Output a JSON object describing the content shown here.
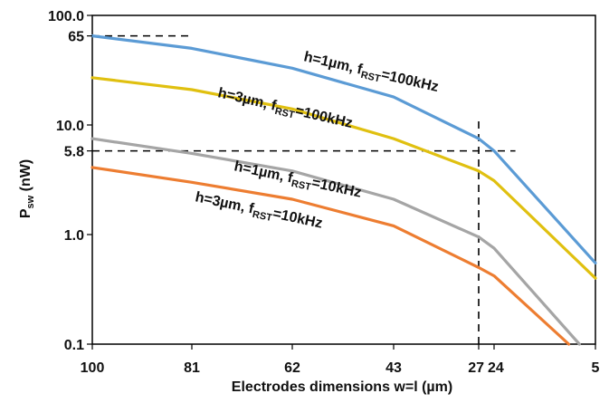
{
  "chart_data": {
    "type": "line",
    "title": "",
    "xlabel": "Electrodes dimensions w=l (µm)",
    "ylabel": {
      "base": "P",
      "sub": "sw",
      "rest": " (nW)"
    },
    "y_scale": "log",
    "ylim": [
      0.1,
      100
    ],
    "x_reversed": true,
    "xlim": [
      100,
      5
    ],
    "x_ticks": [
      100,
      81,
      62,
      43,
      27,
      24,
      5
    ],
    "x_tick_labels": [
      "100",
      "81",
      "62",
      "43",
      "27",
      "24",
      "5"
    ],
    "y_ticks": [
      0.1,
      1.0,
      5.8,
      10.0,
      65,
      100.0
    ],
    "y_tick_labels": [
      "0.1",
      "1.0",
      "5.8",
      "10.0",
      "65",
      "100.0"
    ],
    "grid": false,
    "legend": "none",
    "guides": {
      "horizontal": [
        {
          "y": 65,
          "x_from": 100,
          "x_to": 81
        },
        {
          "y": 5.8,
          "x_from": 100,
          "x_to": 20
        }
      ],
      "vertical": [
        {
          "x": 27,
          "y_from": 0.1,
          "y_to": 11
        }
      ]
    },
    "series": [
      {
        "label": {
          "prefix": "h=1µm, f",
          "sub": "RST",
          "suffix": "=100kHz"
        },
        "color": "#5B9BD5",
        "x": [
          100,
          81,
          62,
          43,
          27,
          24,
          5
        ],
        "y": [
          65,
          50,
          33,
          18,
          7.5,
          5.8,
          0.55
        ]
      },
      {
        "label": {
          "prefix": "h=3µm, f",
          "sub": "RST",
          "suffix": "=100kHz"
        },
        "color": "#E0C010",
        "x": [
          100,
          81,
          62,
          43,
          27,
          24,
          5
        ],
        "y": [
          27,
          21,
          14,
          7.5,
          3.8,
          3.1,
          0.4
        ]
      },
      {
        "label": {
          "prefix": "h=1µm, f",
          "sub": "RST",
          "suffix": "=10kHz"
        },
        "color": "#A5A5A5",
        "x": [
          100,
          81,
          62,
          43,
          27,
          24,
          8
        ],
        "y": [
          7.5,
          5.5,
          3.8,
          2.1,
          0.95,
          0.75,
          0.1
        ]
      },
      {
        "label": {
          "prefix": "h=3µm, f",
          "sub": "RST",
          "suffix": "=10kHz"
        },
        "color": "#ED7D31",
        "x": [
          100,
          81,
          62,
          43,
          27,
          24,
          10
        ],
        "y": [
          4.1,
          3.0,
          2.1,
          1.2,
          0.5,
          0.42,
          0.1
        ]
      }
    ]
  }
}
